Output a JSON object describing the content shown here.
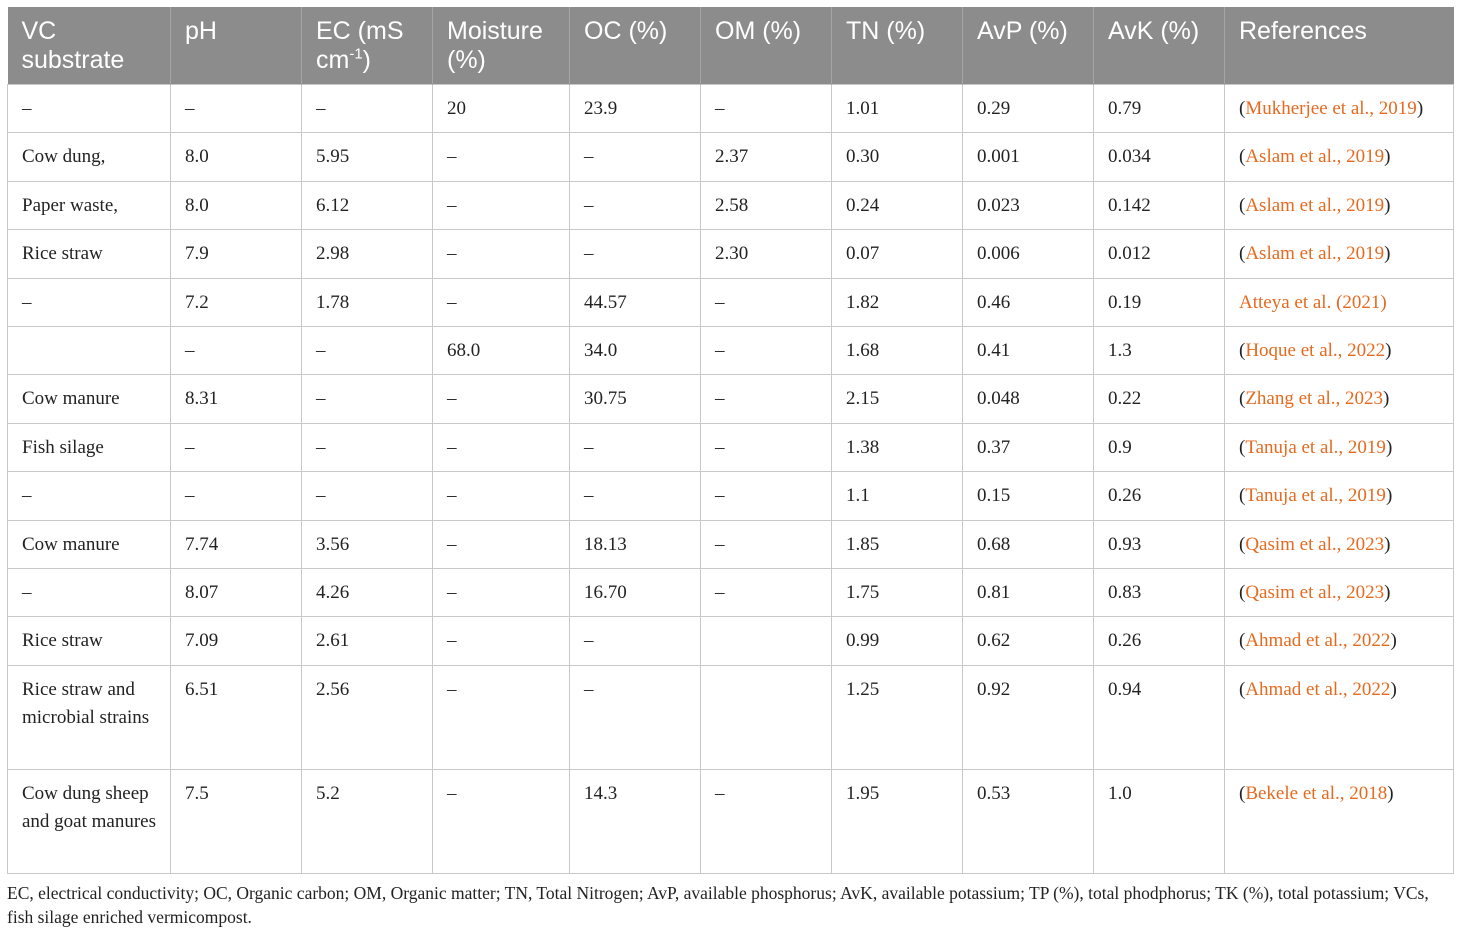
{
  "table": {
    "headers": [
      {
        "key": "vc_substrate",
        "label": "VC substrate"
      },
      {
        "key": "ph",
        "label": "pH"
      },
      {
        "key": "ec",
        "label": "EC (mS cm",
        "sup": "-1",
        "suffix": ")"
      },
      {
        "key": "moisture",
        "label": "Moisture (%)"
      },
      {
        "key": "oc",
        "label": "OC (%)"
      },
      {
        "key": "om",
        "label": "OM (%)"
      },
      {
        "key": "tn",
        "label": "TN (%)"
      },
      {
        "key": "avp",
        "label": "AvP (%)"
      },
      {
        "key": "avk",
        "label": "AvK (%)"
      },
      {
        "key": "references",
        "label": "References"
      }
    ],
    "rows": [
      {
        "cells": [
          "–",
          "–",
          "–",
          "20",
          "23.9",
          "–",
          "1.01",
          "0.29",
          "0.79"
        ],
        "ref": {
          "open": "(",
          "text": "Mukherjee et al., 2019",
          "close": ")"
        }
      },
      {
        "cells": [
          "Cow dung,",
          "8.0",
          "5.95",
          "–",
          "–",
          "2.37",
          "0.30",
          "0.001",
          "0.034"
        ],
        "ref": {
          "open": "(",
          "text": "Aslam et al., 2019",
          "close": ")"
        }
      },
      {
        "cells": [
          "Paper waste,",
          "8.0",
          "6.12",
          "–",
          "–",
          "2.58",
          "0.24",
          "0.023",
          "0.142"
        ],
        "ref": {
          "open": "(",
          "text": "Aslam et al., 2019",
          "close": ")"
        }
      },
      {
        "cells": [
          "Rice straw",
          "7.9",
          "2.98",
          "–",
          "–",
          "2.30",
          "0.07",
          "0.006",
          "0.012"
        ],
        "ref": {
          "open": "(",
          "text": "Aslam et al., 2019",
          "close": ")"
        }
      },
      {
        "cells": [
          "–",
          "7.2",
          "1.78",
          "–",
          "44.57",
          "–",
          "1.82",
          "0.46",
          "0.19"
        ],
        "ref": {
          "open": "",
          "text": "Atteya et al. (2021)",
          "close": ""
        }
      },
      {
        "cells": [
          "",
          "–",
          "–",
          "68.0",
          "34.0",
          "–",
          "1.68",
          "0.41",
          "1.3"
        ],
        "ref": {
          "open": "(",
          "text": "Hoque et al., 2022",
          "close": ")"
        }
      },
      {
        "cells": [
          "Cow manure",
          "8.31",
          "–",
          "–",
          "30.75",
          "–",
          "2.15",
          "0.048",
          "0.22"
        ],
        "ref": {
          "open": "(",
          "text": "Zhang et al., 2023",
          "close": ")"
        }
      },
      {
        "cells": [
          "Fish silage",
          "–",
          "–",
          "–",
          "–",
          "–",
          "1.38",
          "0.37",
          "0.9"
        ],
        "ref": {
          "open": "(",
          "text": "Tanuja et al., 2019",
          "close": ")"
        }
      },
      {
        "cells": [
          "–",
          "–",
          "–",
          "–",
          "–",
          "–",
          "1.1",
          "0.15",
          "0.26"
        ],
        "ref": {
          "open": "(",
          "text": "Tanuja et al., 2019",
          "close": ")"
        }
      },
      {
        "cells": [
          "Cow manure",
          "7.74",
          "3.56",
          "–",
          "18.13",
          "–",
          "1.85",
          "0.68",
          "0.93"
        ],
        "ref": {
          "open": "(",
          "text": "Qasim et al., 2023",
          "close": ")"
        }
      },
      {
        "cells": [
          "–",
          "8.07",
          "4.26",
          "–",
          "16.70",
          "–",
          "1.75",
          "0.81",
          "0.83"
        ],
        "ref": {
          "open": "(",
          "text": "Qasim et al., 2023",
          "close": ")"
        }
      },
      {
        "cells": [
          "Rice straw",
          "7.09",
          "2.61",
          "–",
          "–",
          "",
          "0.99",
          "0.62",
          "0.26"
        ],
        "ref": {
          "open": "(",
          "text": "Ahmad et al., 2022",
          "close": ")"
        }
      },
      {
        "cells": [
          "Rice straw and microbial strains",
          "6.51",
          "2.56",
          "–",
          "–",
          "",
          "1.25",
          "0.92",
          "0.94"
        ],
        "ref": {
          "open": "(",
          "text": "Ahmad et al., 2022",
          "close": ")"
        }
      },
      {
        "cells": [
          "Cow dung sheep and goat manures",
          "7.5",
          "5.2",
          "–",
          "14.3",
          "–",
          "1.95",
          "0.53",
          "1.0"
        ],
        "ref": {
          "open": "(",
          "text": "Bekele et al., 2018",
          "close": ")"
        }
      }
    ]
  },
  "footnote": "EC, electrical conductivity; OC, Organic carbon; OM, Organic matter; TN, Total Nitrogen; AvP, available phosphorus; AvK, available potassium; TP (%), total phodphorus; TK (%), total potassium; VCs, fish silage enriched vermicompost.",
  "colors": {
    "header_bg": "#8c8c8c",
    "header_text": "#ffffff",
    "reference_link": "#e56a1f",
    "grid": "#c9c9c9"
  }
}
